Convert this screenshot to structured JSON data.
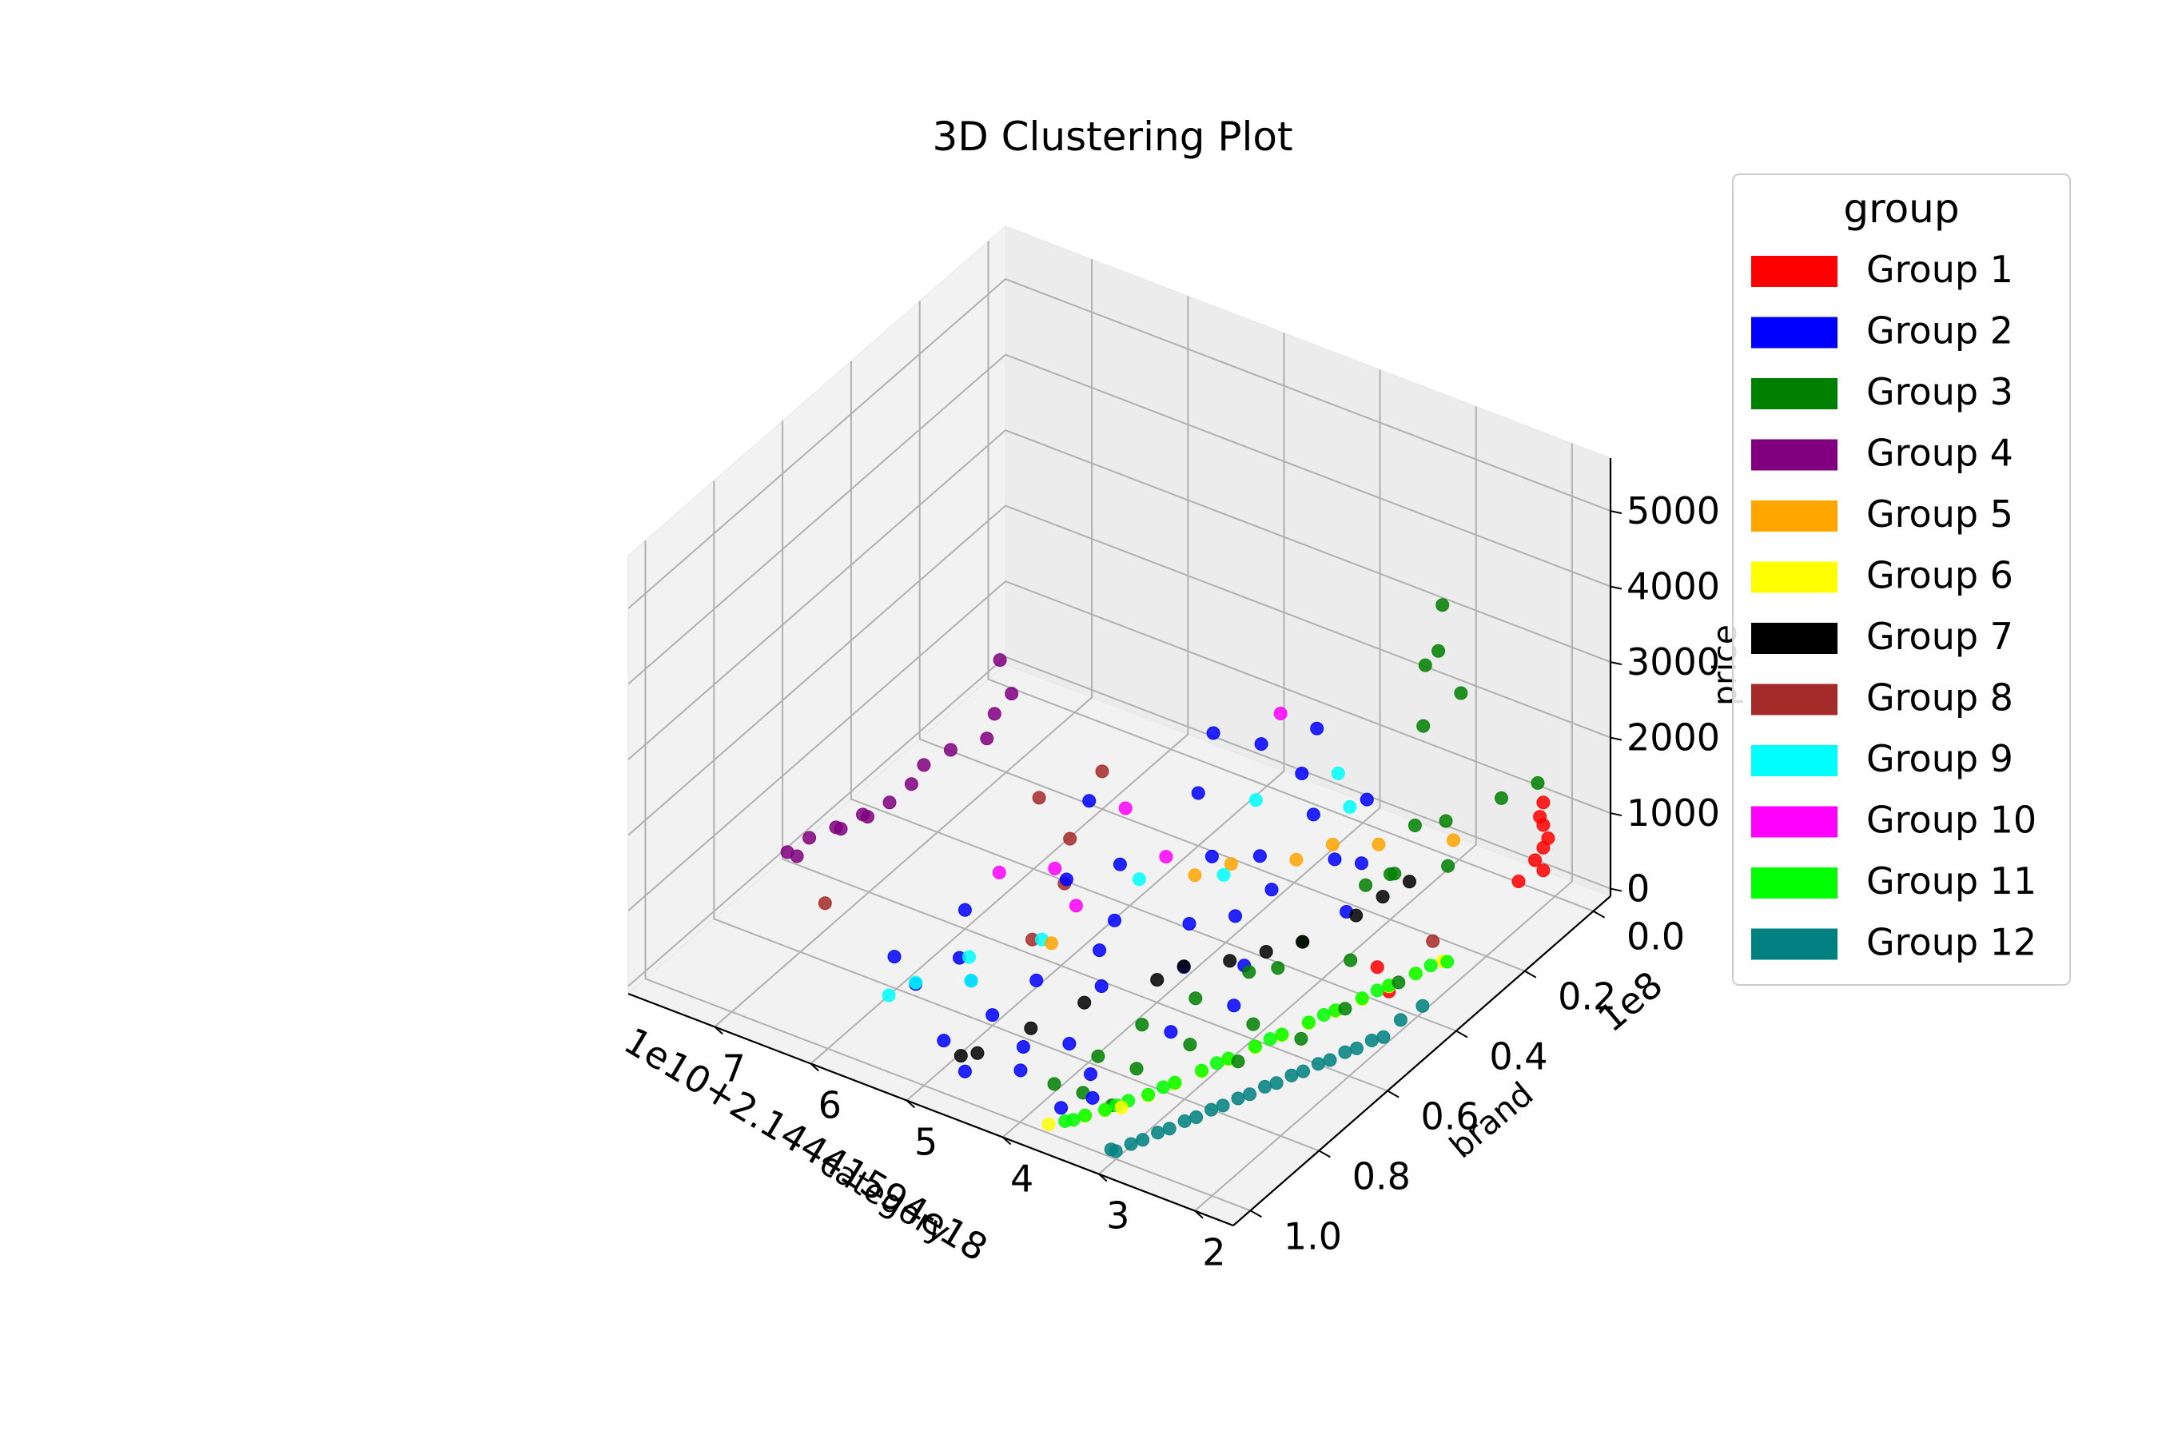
{
  "chart_data": {
    "type": "scatter",
    "projection": "3d",
    "title": "3D Clustering Plot",
    "x_axis": {
      "label": "category",
      "offset_text": "1e10+2.14441594e18",
      "tick_labels": [
        "7",
        "6",
        "5",
        "4",
        "3",
        "2"
      ],
      "tick_values": [
        7,
        6,
        5,
        4,
        3,
        2
      ],
      "range": [
        1.6,
        7.9
      ]
    },
    "y_axis": {
      "label": "brand",
      "offset_text": "1e8",
      "tick_labels": [
        "0.0",
        "0.2",
        "0.4",
        "0.6",
        "0.8",
        "1.0"
      ],
      "tick_values": [
        0.0,
        0.2,
        0.4,
        0.6,
        0.8,
        1.0
      ],
      "range": [
        -0.05,
        1.05
      ]
    },
    "z_axis": {
      "label": "price",
      "tick_labels": [
        "0",
        "1000",
        "2000",
        "3000",
        "4000",
        "5000"
      ],
      "tick_values": [
        0,
        1000,
        2000,
        3000,
        4000,
        5000
      ],
      "range": [
        -100,
        5700
      ]
    },
    "grid": true,
    "legend": {
      "title": "group",
      "placement": "outside right"
    },
    "series": [
      {
        "name": "Group 1",
        "color": "#ff0000",
        "points": [
          [
            2.05,
            0.02,
            300
          ],
          [
            2.05,
            0.02,
            600
          ],
          [
            2.05,
            0.02,
            900
          ],
          [
            2.05,
            0.02,
            1200
          ],
          [
            2.1,
            0.03,
            450
          ],
          [
            2.0,
            0.02,
            750
          ],
          [
            2.05,
            0.03,
            1050
          ],
          [
            2.2,
            0.05,
            200
          ],
          [
            2.3,
            0.4,
            80
          ],
          [
            2.6,
            0.35,
            60
          ]
        ]
      },
      {
        "name": "Group 2",
        "color": "#0000ff",
        "points": [
          [
            3.6,
            0.9,
            20
          ],
          [
            3.8,
            0.85,
            40
          ],
          [
            4.2,
            0.8,
            50
          ],
          [
            4.5,
            0.85,
            60
          ],
          [
            5.0,
            0.8,
            40
          ],
          [
            5.4,
            0.75,
            100
          ],
          [
            5.7,
            0.7,
            60
          ],
          [
            6.0,
            0.6,
            150
          ],
          [
            4.8,
            0.5,
            200
          ],
          [
            4.2,
            0.45,
            250
          ],
          [
            3.9,
            0.4,
            300
          ],
          [
            4.5,
            0.3,
            400
          ],
          [
            5.0,
            0.2,
            600
          ],
          [
            5.2,
            0.1,
            900
          ],
          [
            4.7,
            0.1,
            1000
          ],
          [
            4.3,
            0.05,
            1200
          ],
          [
            3.6,
            0.1,
            800
          ],
          [
            3.3,
            0.2,
            500
          ],
          [
            3.1,
            0.3,
            350
          ],
          [
            3.4,
            0.25,
            700
          ],
          [
            3.8,
            0.2,
            900
          ],
          [
            4.0,
            0.3,
            650
          ],
          [
            4.6,
            0.6,
            300
          ],
          [
            5.3,
            0.5,
            500
          ],
          [
            5.6,
            0.35,
            800
          ],
          [
            3.5,
            0.7,
            150
          ],
          [
            3.2,
            0.6,
            250
          ],
          [
            4.9,
            0.7,
            150
          ],
          [
            5.8,
            0.8,
            60
          ],
          [
            6.2,
            0.75,
            30
          ],
          [
            3.7,
            0.35,
            550
          ],
          [
            4.1,
            0.15,
            1100
          ],
          [
            3.9,
            0.55,
            220
          ],
          [
            4.4,
            0.65,
            120
          ],
          [
            5.1,
            0.4,
            400
          ],
          [
            4.35,
            0.9,
            20
          ],
          [
            3.75,
            0.95,
            15
          ],
          [
            4.75,
            0.95,
            10
          ],
          [
            5.15,
            0.9,
            25
          ],
          [
            3.45,
            0.5,
            260
          ]
        ]
      },
      {
        "name": "Group 3",
        "color": "#008000",
        "points": [
          [
            2.1,
            0.3,
            4900
          ],
          [
            2.1,
            0.35,
            4300
          ],
          [
            2.3,
            0.3,
            3200
          ],
          [
            2.5,
            0.2,
            3700
          ],
          [
            2.8,
            0.05,
            2400
          ],
          [
            2.0,
            0.05,
            1600
          ],
          [
            2.6,
            0.3,
            1100
          ],
          [
            3.0,
            0.2,
            500
          ],
          [
            3.2,
            0.4,
            300
          ],
          [
            3.4,
            0.5,
            200
          ],
          [
            3.6,
            0.6,
            150
          ],
          [
            3.8,
            0.7,
            100
          ],
          [
            2.4,
            0.5,
            200
          ],
          [
            2.7,
            0.4,
            300
          ],
          [
            3.0,
            0.6,
            100
          ],
          [
            3.3,
            0.7,
            80
          ],
          [
            2.2,
            0.1,
            1500
          ],
          [
            2.9,
            0.3,
            800
          ],
          [
            3.1,
            0.5,
            400
          ],
          [
            3.5,
            0.8,
            60
          ],
          [
            3.7,
            0.9,
            40
          ],
          [
            2.5,
            0.6,
            150
          ],
          [
            2.8,
            0.7,
            100
          ],
          [
            2.2,
            0.4,
            250
          ],
          [
            3.9,
            0.8,
            30
          ],
          [
            3.4,
            0.9,
            20
          ],
          [
            4.0,
            0.9,
            10
          ],
          [
            3.1,
            0.1,
            700
          ],
          [
            2.6,
            0.15,
            1200
          ],
          [
            2.4,
            0.2,
            900
          ]
        ]
      },
      {
        "name": "Group 4",
        "color": "#800080",
        "points": [
          [
            7.5,
            0.3,
            150
          ],
          [
            7.4,
            0.25,
            200
          ],
          [
            7.5,
            0.4,
            50
          ],
          [
            7.6,
            0.45,
            40
          ],
          [
            7.7,
            0.5,
            20
          ],
          [
            7.8,
            0.55,
            30
          ],
          [
            7.75,
            0.6,
            10
          ],
          [
            7.6,
            0.05,
            500
          ],
          [
            7.3,
            0.1,
            400
          ],
          [
            7.2,
            0.2,
            250
          ],
          [
            7.45,
            0.35,
            120
          ],
          [
            7.65,
            0.5,
            25
          ],
          [
            7.55,
            0.45,
            35
          ],
          [
            7.85,
            0.6,
            15
          ],
          [
            7.3,
            0.15,
            330
          ]
        ]
      },
      {
        "name": "Group 5",
        "color": "#ffa500",
        "points": [
          [
            3.6,
            0.2,
            600
          ],
          [
            3.8,
            0.25,
            500
          ],
          [
            4.5,
            0.35,
            350
          ],
          [
            5.1,
            0.6,
            150
          ],
          [
            2.7,
            0.1,
            700
          ],
          [
            3.3,
            0.15,
            550
          ],
          [
            4.3,
            0.3,
            400
          ]
        ]
      },
      {
        "name": "Group 6",
        "color": "#ffff00",
        "points": [
          [
            2.3,
            0.4,
            150
          ],
          [
            2.5,
            0.5,
            120
          ],
          [
            2.7,
            0.6,
            100
          ],
          [
            2.9,
            0.7,
            80
          ],
          [
            3.1,
            0.8,
            60
          ],
          [
            3.3,
            0.9,
            40
          ],
          [
            3.5,
            0.95,
            30
          ],
          [
            3.7,
            1.0,
            20
          ],
          [
            2.4,
            0.45,
            130
          ],
          [
            2.6,
            0.55,
            110
          ],
          [
            2.8,
            0.65,
            90
          ],
          [
            3.0,
            0.75,
            70
          ],
          [
            3.2,
            0.85,
            50
          ],
          [
            3.4,
            0.92,
            35
          ],
          [
            2.2,
            0.35,
            170
          ],
          [
            2.1,
            0.3,
            180
          ]
        ]
      },
      {
        "name": "Group 7",
        "color": "#000000",
        "points": [
          [
            2.8,
            0.2,
            500
          ],
          [
            3.0,
            0.3,
            350
          ],
          [
            3.6,
            0.5,
            250
          ],
          [
            4.0,
            0.6,
            200
          ],
          [
            4.4,
            0.7,
            100
          ],
          [
            4.8,
            0.9,
            30
          ],
          [
            4.9,
            0.92,
            25
          ],
          [
            3.2,
            0.4,
            300
          ],
          [
            3.9,
            0.55,
            230
          ],
          [
            3.4,
            0.45,
            270
          ],
          [
            2.9,
            0.25,
            450
          ],
          [
            4.6,
            0.8,
            60
          ]
        ]
      },
      {
        "name": "Group 8",
        "color": "#a52a2a",
        "points": [
          [
            6.0,
            0.2,
            400
          ],
          [
            5.8,
            0.35,
            200
          ],
          [
            6.3,
            0.3,
            300
          ],
          [
            7.1,
            0.7,
            100
          ],
          [
            5.5,
            0.45,
            150
          ],
          [
            5.3,
            0.6,
            100
          ],
          [
            2.2,
            0.3,
            400
          ]
        ]
      },
      {
        "name": "Group 9",
        "color": "#00ffff",
        "points": [
          [
            3.9,
            0.1,
            1000
          ],
          [
            4.4,
            0.2,
            800
          ],
          [
            4.9,
            0.4,
            300
          ],
          [
            5.2,
            0.6,
            150
          ],
          [
            5.6,
            0.7,
            120
          ],
          [
            5.8,
            0.8,
            80
          ],
          [
            4.2,
            0.35,
            500
          ],
          [
            3.6,
            0.15,
            900
          ],
          [
            5.4,
            0.75,
            100
          ],
          [
            5.9,
            0.85,
            60
          ]
        ]
      },
      {
        "name": "Group 10",
        "color": "#ff00ff",
        "points": [
          [
            4.5,
            0.1,
            1500
          ],
          [
            5.4,
            0.3,
            600
          ],
          [
            5.6,
            0.45,
            300
          ],
          [
            6.0,
            0.5,
            250
          ],
          [
            4.8,
            0.35,
            450
          ],
          [
            5.2,
            0.5,
            200
          ]
        ]
      },
      {
        "name": "Group 11",
        "color": "#00ff00",
        "points": [
          [
            2.2,
            0.35,
            170
          ],
          [
            2.4,
            0.45,
            140
          ],
          [
            2.6,
            0.55,
            120
          ],
          [
            2.8,
            0.65,
            100
          ],
          [
            3.0,
            0.75,
            80
          ],
          [
            3.2,
            0.85,
            60
          ],
          [
            3.4,
            0.92,
            40
          ],
          [
            3.6,
            0.98,
            30
          ],
          [
            2.3,
            0.4,
            160
          ],
          [
            2.5,
            0.5,
            130
          ],
          [
            2.7,
            0.6,
            110
          ],
          [
            2.9,
            0.7,
            90
          ],
          [
            3.1,
            0.8,
            70
          ],
          [
            3.3,
            0.88,
            50
          ],
          [
            3.5,
            0.95,
            35
          ],
          [
            2.15,
            0.32,
            180
          ],
          [
            2.35,
            0.42,
            150
          ],
          [
            2.55,
            0.52,
            125
          ],
          [
            2.75,
            0.62,
            105
          ],
          [
            2.95,
            0.72,
            85
          ],
          [
            3.15,
            0.82,
            65
          ],
          [
            3.35,
            0.9,
            45
          ],
          [
            3.55,
            0.97,
            32
          ],
          [
            2.05,
            0.3,
            200
          ]
        ]
      },
      {
        "name": "Group 12",
        "color": "#008080",
        "points": [
          [
            2.0,
            0.5,
            20
          ],
          [
            2.1,
            0.55,
            20
          ],
          [
            2.2,
            0.6,
            15
          ],
          [
            2.3,
            0.65,
            15
          ],
          [
            2.4,
            0.7,
            10
          ],
          [
            2.5,
            0.75,
            10
          ],
          [
            2.6,
            0.8,
            10
          ],
          [
            2.7,
            0.85,
            5
          ],
          [
            2.8,
            0.9,
            5
          ],
          [
            2.9,
            0.95,
            5
          ],
          [
            3.0,
            1.0,
            5
          ],
          [
            2.05,
            0.52,
            30
          ],
          [
            2.15,
            0.57,
            25
          ],
          [
            2.25,
            0.62,
            20
          ],
          [
            2.35,
            0.67,
            15
          ],
          [
            2.45,
            0.72,
            15
          ],
          [
            2.55,
            0.77,
            10
          ],
          [
            2.65,
            0.82,
            10
          ],
          [
            2.75,
            0.87,
            8
          ],
          [
            2.85,
            0.92,
            6
          ],
          [
            2.95,
            0.97,
            5
          ],
          [
            3.05,
            1.0,
            3
          ],
          [
            2.0,
            0.45,
            50
          ],
          [
            1.95,
            0.4,
            60
          ]
        ]
      }
    ]
  }
}
